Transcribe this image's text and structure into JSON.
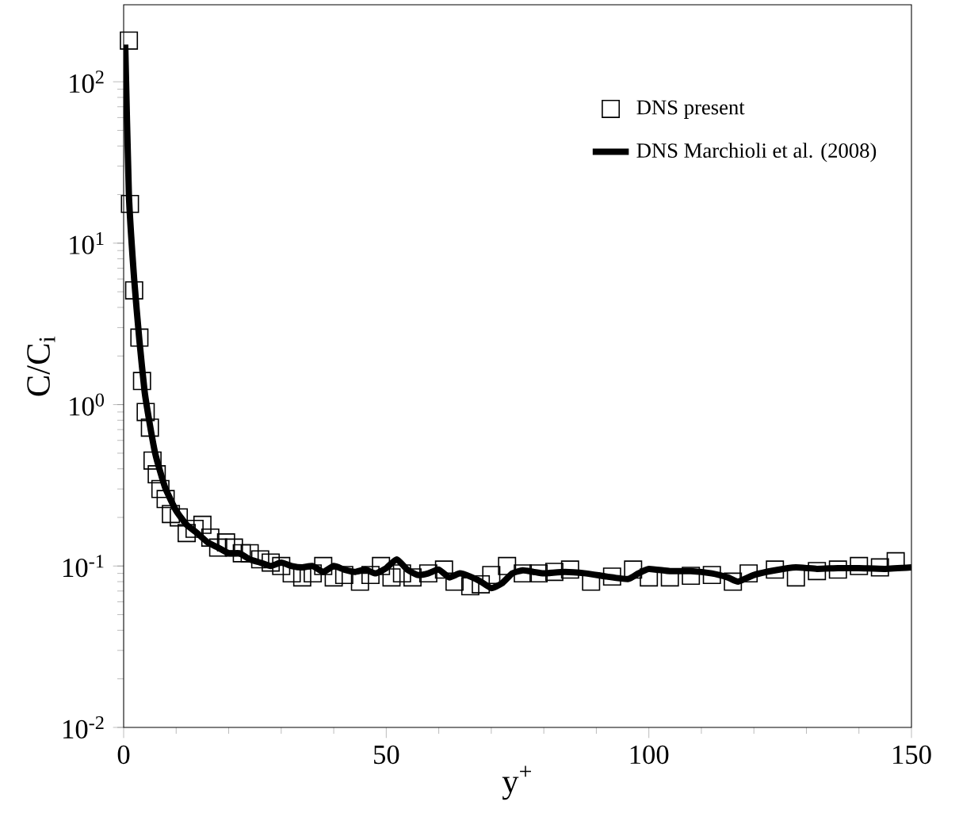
{
  "chart_data": {
    "type": "scatter",
    "xlabel": "y$^{+}$",
    "ylabel": "C/C$_{i}$",
    "log": "y",
    "xlim": [
      0,
      150
    ],
    "xticks": [
      0,
      50,
      100,
      150
    ],
    "ylim": [
      0.01,
      300
    ],
    "yticks": [
      {
        "value": 0.01,
        "label": "10$^{-2}$"
      },
      {
        "value": 0.1,
        "label": "10$^{-1}$"
      },
      {
        "value": 1,
        "label": "10$^{0}$"
      },
      {
        "value": 10,
        "label": "10$^{1}$"
      },
      {
        "value": 100,
        "label": "10$^{2}$"
      }
    ],
    "legend": "top right",
    "grid": false,
    "series": [
      {
        "name": "DNS present",
        "type": "scatter",
        "marker": "square",
        "color": "#000000",
        "x": [
          1,
          1.2,
          2,
          3,
          3.5,
          4.2,
          5,
          5.5,
          6.3,
          7,
          8,
          9,
          10.5,
          12,
          13.5,
          15,
          16.5,
          18,
          19.5,
          21,
          22.5,
          24,
          26,
          28,
          30,
          32,
          34,
          36,
          38,
          40,
          42,
          45,
          47,
          49,
          51,
          53,
          55,
          58,
          61,
          63,
          66,
          68,
          70,
          73,
          76,
          79,
          82,
          85,
          89,
          93,
          97,
          100,
          104,
          108,
          112,
          116,
          119,
          124,
          128,
          132,
          136,
          140,
          144,
          147
        ],
        "values": [
          180,
          17.5,
          5.1,
          2.6,
          1.4,
          0.9,
          0.72,
          0.45,
          0.37,
          0.3,
          0.26,
          0.21,
          0.2,
          0.16,
          0.17,
          0.18,
          0.15,
          0.13,
          0.14,
          0.13,
          0.12,
          0.12,
          0.11,
          0.105,
          0.1,
          0.09,
          0.085,
          0.09,
          0.1,
          0.085,
          0.088,
          0.08,
          0.088,
          0.1,
          0.085,
          0.09,
          0.085,
          0.09,
          0.095,
          0.08,
          0.075,
          0.077,
          0.088,
          0.1,
          0.09,
          0.09,
          0.092,
          0.095,
          0.08,
          0.086,
          0.095,
          0.085,
          0.085,
          0.087,
          0.088,
          0.08,
          0.09,
          0.095,
          0.085,
          0.093,
          0.095,
          0.1,
          0.098,
          0.107
        ]
      },
      {
        "name": "DNS Marchioli et al. (2008)",
        "type": "line",
        "marker": "none",
        "line_style": "solid",
        "color": "#000000",
        "x": [
          0.3,
          1,
          2,
          3,
          4,
          5,
          6,
          7,
          8,
          10,
          12,
          14,
          16,
          18,
          20,
          22,
          24,
          26,
          28,
          30,
          32,
          34,
          36,
          38,
          40,
          42,
          44,
          46,
          48,
          50,
          52,
          54,
          56,
          58,
          60,
          62,
          64,
          66,
          68,
          70,
          72,
          74,
          76,
          78,
          80,
          84,
          88,
          92,
          96,
          98,
          100,
          104,
          108,
          112,
          115,
          117,
          120,
          124,
          128,
          132,
          136,
          140,
          145,
          150
        ],
        "values": [
          170,
          20,
          6,
          2.5,
          1.2,
          0.75,
          0.5,
          0.38,
          0.3,
          0.22,
          0.18,
          0.16,
          0.14,
          0.13,
          0.12,
          0.12,
          0.11,
          0.105,
          0.1,
          0.105,
          0.1,
          0.098,
          0.1,
          0.092,
          0.1,
          0.095,
          0.092,
          0.095,
          0.09,
          0.097,
          0.11,
          0.095,
          0.088,
          0.09,
          0.095,
          0.085,
          0.09,
          0.086,
          0.08,
          0.073,
          0.078,
          0.09,
          0.094,
          0.092,
          0.09,
          0.092,
          0.09,
          0.086,
          0.083,
          0.09,
          0.096,
          0.093,
          0.093,
          0.09,
          0.085,
          0.08,
          0.088,
          0.094,
          0.098,
          0.096,
          0.097,
          0.097,
          0.096,
          0.098
        ]
      }
    ]
  }
}
